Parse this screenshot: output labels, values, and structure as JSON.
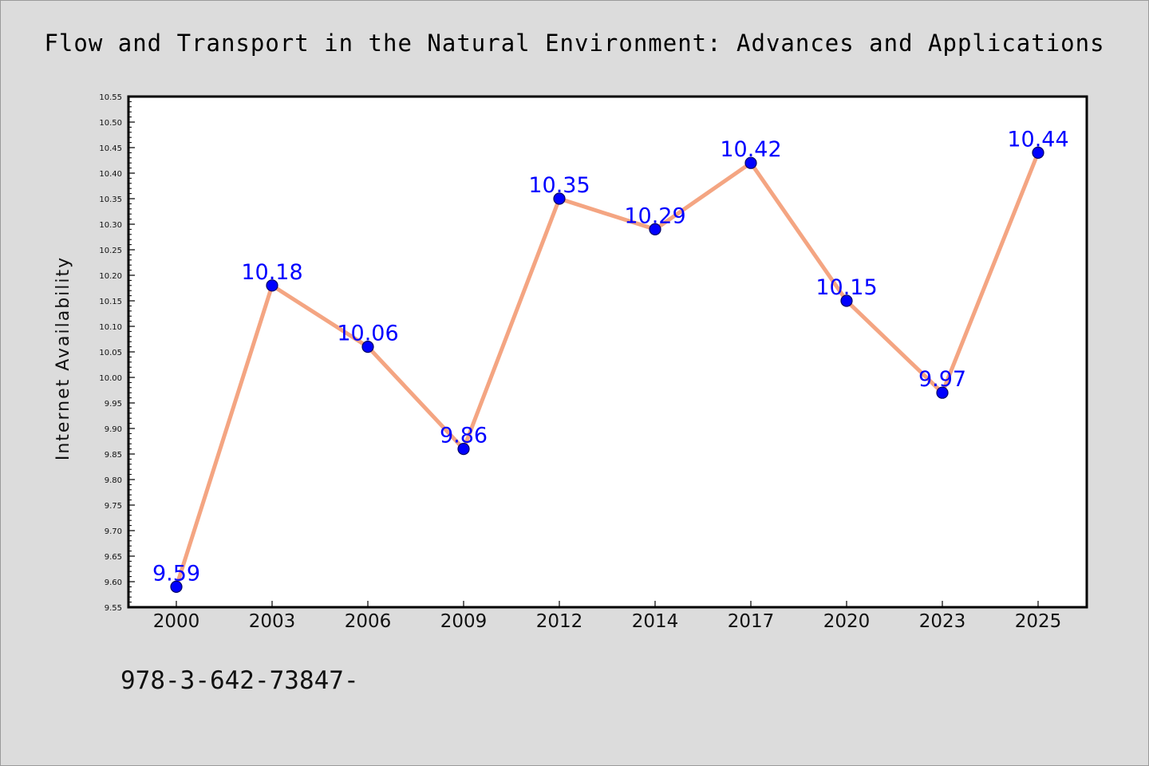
{
  "page": {
    "footer_code": "978-3-642-73847-"
  },
  "colors": {
    "background": "#dcdcdc",
    "plot_background": "#ffffff",
    "line": "#f4a582",
    "marker_fill": "#0000ff",
    "marker_stroke": "#000066",
    "data_label": "#0000ff"
  },
  "chart_data": {
    "type": "line",
    "title": "Flow and Transport in the Natural Environment: Advances and Applications",
    "xlabel": "",
    "ylabel": "Internet Availability",
    "categories": [
      "2000",
      "2003",
      "2006",
      "2009",
      "2012",
      "2014",
      "2017",
      "2020",
      "2023",
      "2025"
    ],
    "series": [
      {
        "values": [
          9.59,
          10.18,
          10.06,
          9.86,
          10.35,
          10.29,
          10.42,
          10.15,
          9.97,
          10.44
        ],
        "data_labels": [
          "9.59",
          "10.18",
          "10.06",
          "9.86",
          "10.35",
          "10.29",
          "10.42",
          "10.15",
          "9.97",
          "10.44"
        ]
      }
    ],
    "ylim": [
      9.55,
      10.55
    ],
    "y_ticks": [
      "9.55",
      "9.60",
      "9.65",
      "9.70",
      "9.75",
      "9.80",
      "9.85",
      "9.90",
      "9.95",
      "10.00",
      "10.05",
      "10.10",
      "10.15",
      "10.20",
      "10.25",
      "10.30",
      "10.35",
      "10.40",
      "10.45",
      "10.50",
      "10.55"
    ],
    "grid": false,
    "legend": "none"
  }
}
